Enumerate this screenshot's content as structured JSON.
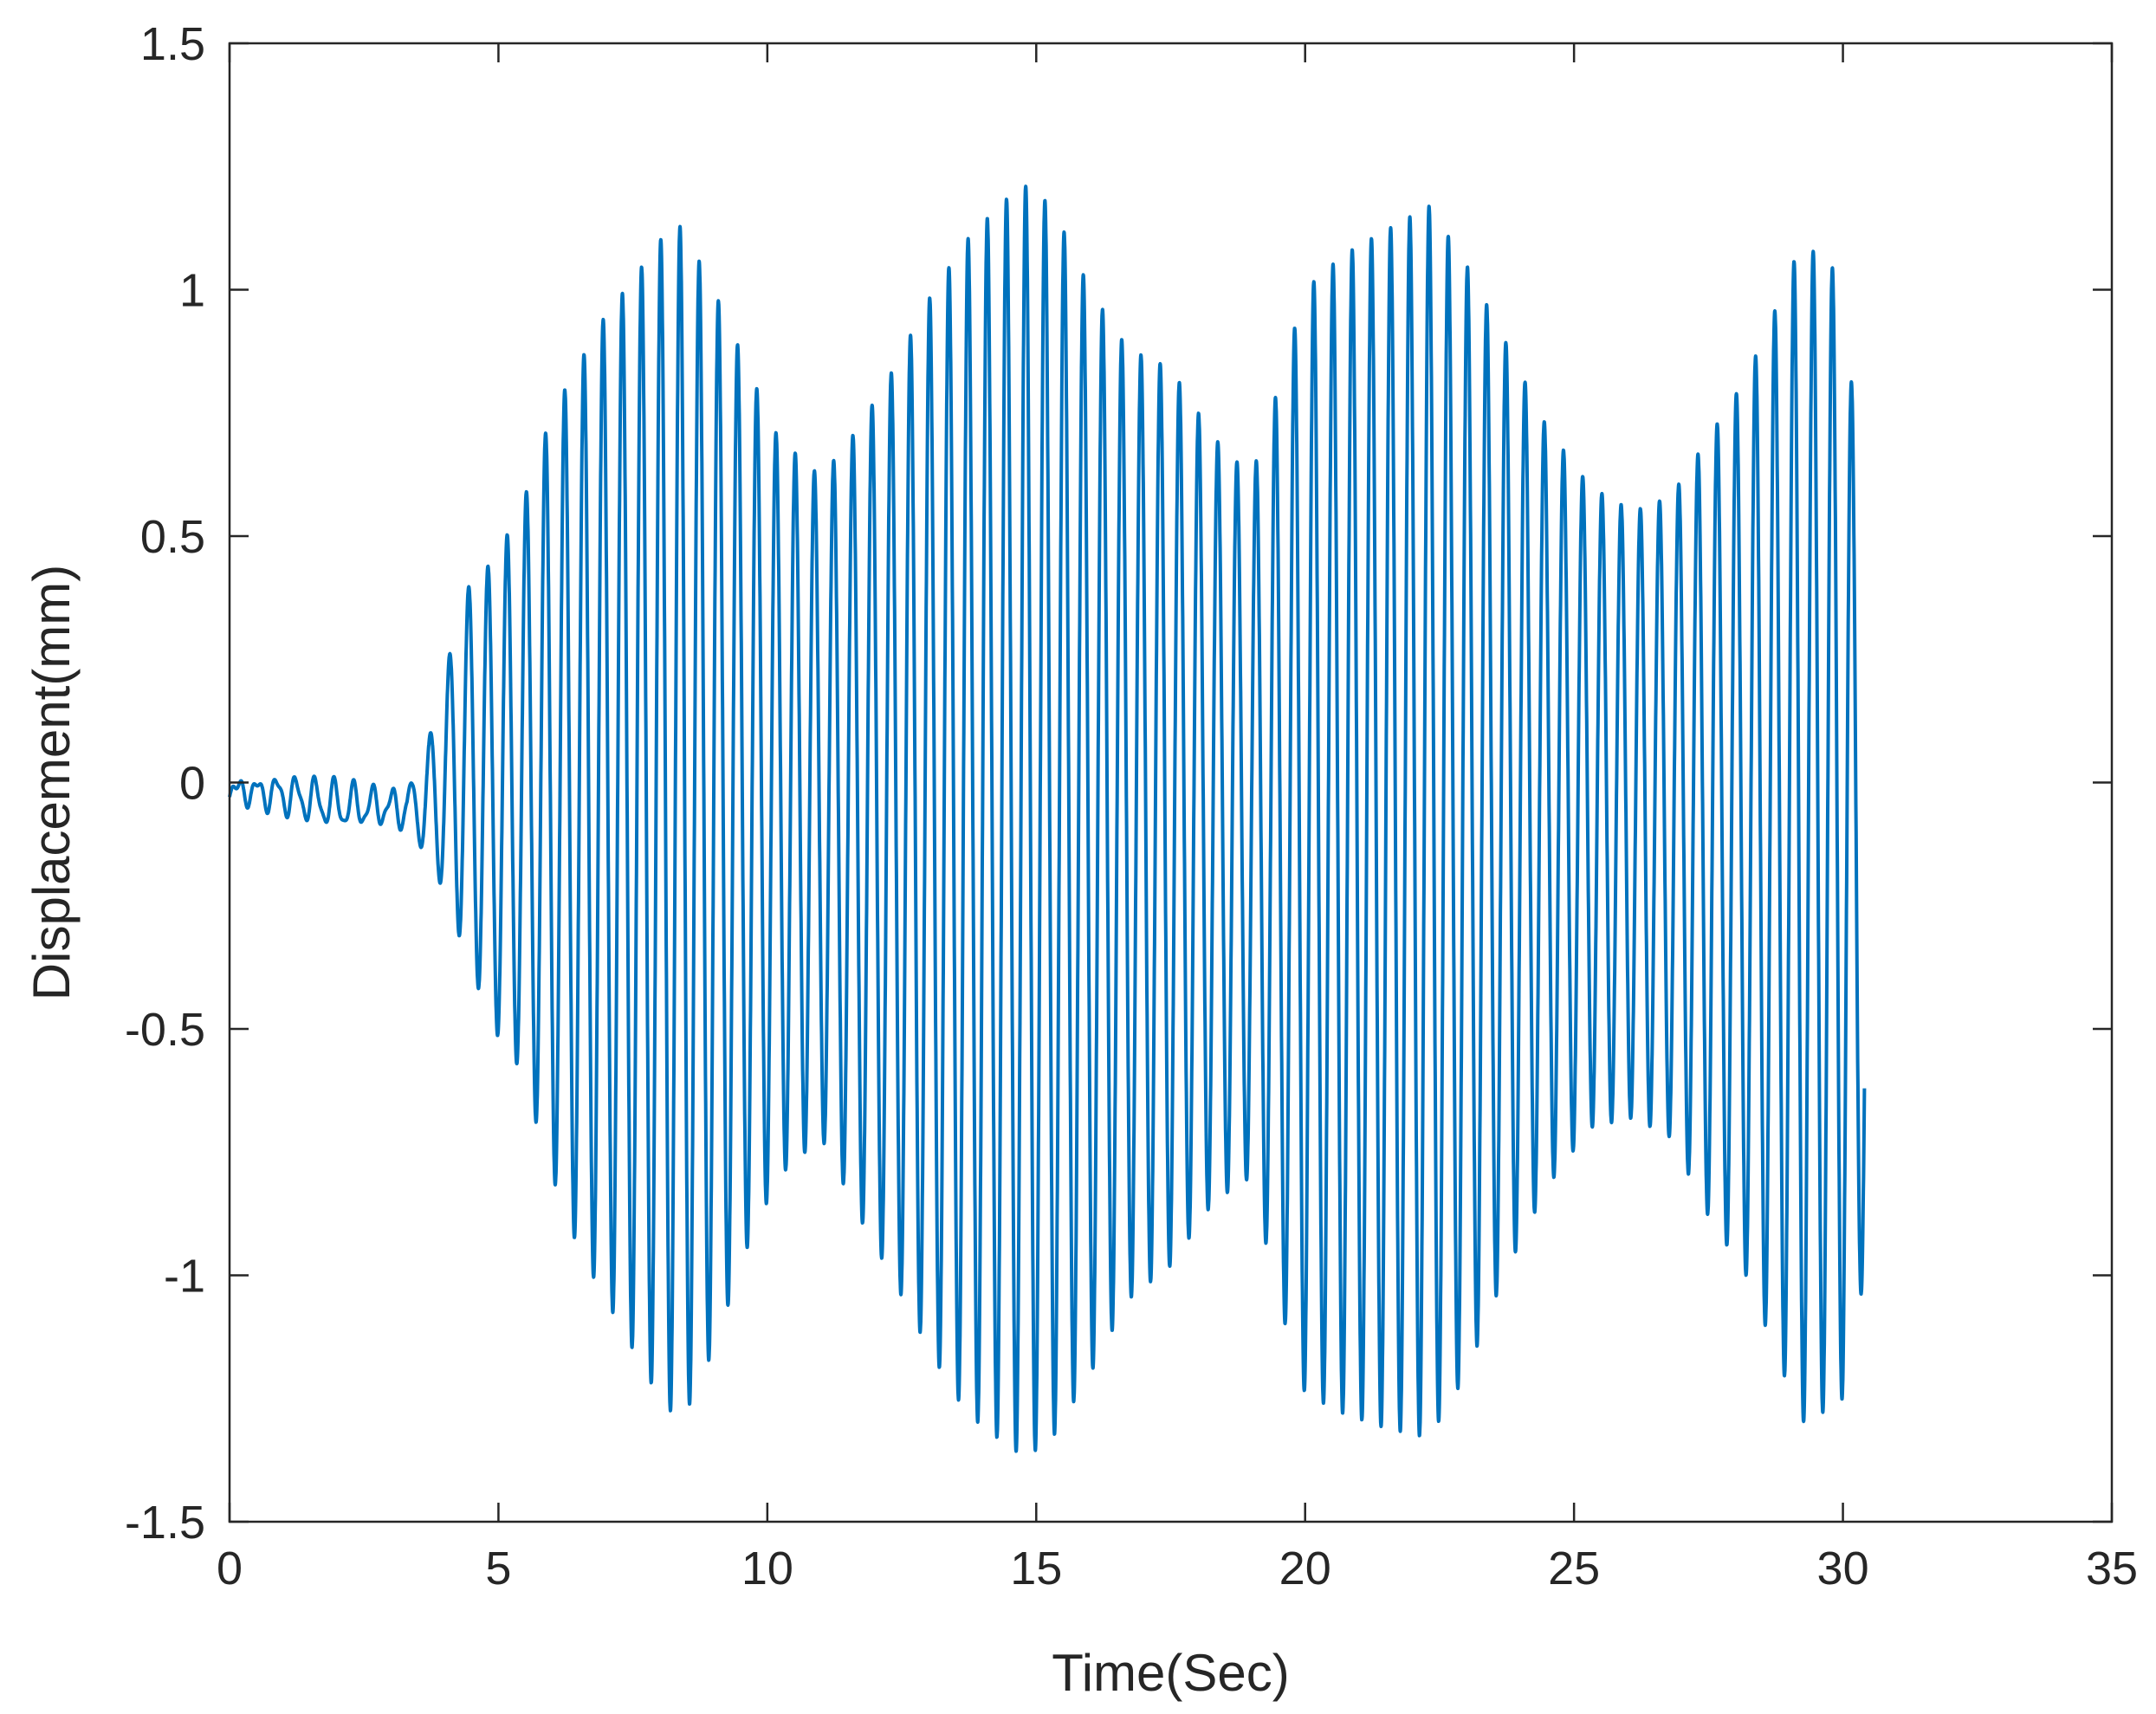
{
  "chart_data": {
    "type": "line",
    "xlabel": "Time(Sec)",
    "ylabel": "Displacement(mm)",
    "xlim": [
      0,
      35
    ],
    "ylim": [
      -1.5,
      1.5
    ],
    "xticks": [
      0,
      5,
      10,
      15,
      20,
      25,
      30,
      35
    ],
    "yticks": [
      -1.5,
      -1,
      -0.5,
      0,
      0.5,
      1,
      1.5
    ],
    "xtick_labels": [
      "0",
      "5",
      "10",
      "15",
      "20",
      "25",
      "30",
      "35"
    ],
    "ytick_labels": [
      "-1.5",
      "-1",
      "-0.5",
      "0",
      "0.5",
      "1",
      "1.5"
    ],
    "grid": false,
    "box": true,
    "series": [
      {
        "color": "#0072BD",
        "x_range": [
          0,
          30.4
        ],
        "dominant_frequency_hz": 2.8,
        "upper_envelope": {
          "t": [
            0,
            1,
            2,
            3,
            3.4,
            3.9,
            4.3,
            4.9,
            5.4,
            6.0,
            6.5,
            7.0,
            7.5,
            8.0,
            8.4,
            9.0,
            9.6,
            10.2,
            11.0,
            11.7,
            12.3,
            13.0,
            13.7,
            14.4,
            14.8,
            15.3,
            16.0,
            16.7,
            17.5,
            18.3,
            19.0,
            19.5,
            20.0,
            20.7,
            21.5,
            22.3,
            23.0,
            23.7,
            24.5,
            25.3,
            26.1,
            26.8,
            27.5,
            28.2,
            28.9,
            29.2,
            29.6,
            30.0,
            30.4
          ],
          "v": [
            0.0,
            0.01,
            0.0,
            -0.02,
            0.0,
            0.15,
            0.38,
            0.45,
            0.55,
            0.75,
            0.85,
            0.95,
            1.02,
            1.1,
            1.13,
            1.0,
            0.85,
            0.7,
            0.62,
            0.72,
            0.83,
            0.98,
            1.1,
            1.18,
            1.21,
            1.17,
            1.0,
            0.88,
            0.84,
            0.7,
            0.62,
            0.8,
            1.0,
            1.07,
            1.12,
            1.17,
            1.05,
            0.9,
            0.72,
            0.6,
            0.55,
            0.58,
            0.7,
            0.82,
            1.0,
            1.09,
            1.07,
            1.02,
            0.5
          ]
        },
        "lower_envelope": {
          "t": [
            0,
            1,
            2,
            3,
            3.4,
            3.9,
            4.3,
            4.9,
            5.4,
            6.0,
            6.5,
            7.0,
            7.5,
            8.0,
            8.4,
            9.0,
            9.6,
            10.2,
            11.0,
            11.7,
            12.3,
            13.0,
            13.7,
            14.4,
            14.8,
            15.3,
            16.0,
            16.7,
            17.5,
            18.3,
            19.0,
            19.5,
            20.0,
            20.7,
            21.5,
            22.3,
            23.0,
            23.7,
            24.5,
            25.3,
            26.1,
            26.8,
            27.5,
            28.2,
            28.9,
            29.2,
            29.6,
            30.0,
            30.4
          ],
          "v": [
            -0.03,
            -0.06,
            -0.09,
            -0.08,
            -0.1,
            -0.2,
            -0.32,
            -0.5,
            -0.58,
            -0.8,
            -0.95,
            -1.05,
            -1.15,
            -1.25,
            -1.3,
            -1.15,
            -0.95,
            -0.8,
            -0.72,
            -0.88,
            -1.0,
            -1.15,
            -1.28,
            -1.34,
            -1.37,
            -1.33,
            -1.2,
            -1.05,
            -0.98,
            -0.85,
            -0.8,
            -1.05,
            -1.24,
            -1.28,
            -1.31,
            -1.33,
            -1.2,
            -1.0,
            -0.82,
            -0.7,
            -0.68,
            -0.72,
            -0.88,
            -1.0,
            -1.2,
            -1.3,
            -1.28,
            -1.25,
            -1.0
          ]
        }
      }
    ]
  }
}
